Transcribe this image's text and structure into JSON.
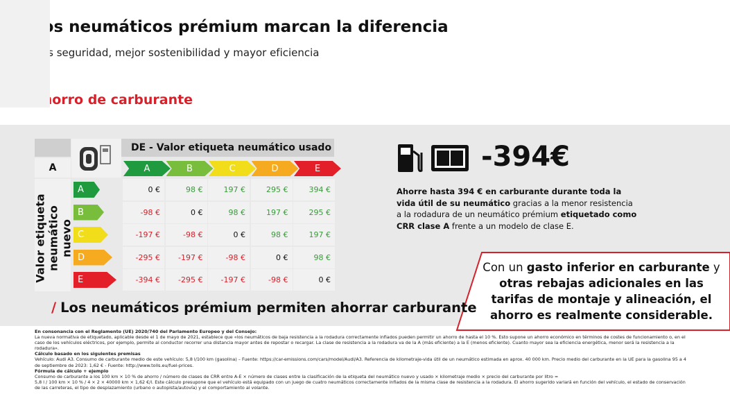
{
  "header": {
    "title": "Los neumáticos prémium marcan la diferencia",
    "subtitle": "Más seguridad, mejor sostenibilidad y mayor eficiencia"
  },
  "section_title": "Ahorro de carburante",
  "table": {
    "title": "DE - Valor etiqueta neumático usado",
    "corner_label": "A",
    "columns": [
      "A",
      "B",
      "C",
      "D",
      "E"
    ],
    "row_axis_label": "Valor etiqueta neumático nuevo",
    "rows": [
      {
        "label": "A",
        "cells": [
          "0 €",
          "98 €",
          "197 €",
          "295 €",
          "394 €"
        ]
      },
      {
        "label": "B",
        "cells": [
          "-98 €",
          "0 €",
          "98 €",
          "197 €",
          "295 €"
        ]
      },
      {
        "label": "C",
        "cells": [
          "-197 €",
          "-98 €",
          "0 €",
          "98 €",
          "197 €"
        ]
      },
      {
        "label": "D",
        "cells": [
          "-295 €",
          "-197 €",
          "-98 €",
          "0 €",
          "98 €"
        ]
      },
      {
        "label": "E",
        "cells": [
          "-394 €",
          "-295 €",
          "-197 €",
          "-98 €",
          "0 €"
        ]
      }
    ]
  },
  "savings": {
    "amount": "-394€",
    "description": [
      {
        "text": "Ahorre hasta 394 € en carburante durante toda la vida útil de su neumático",
        "bold": true
      },
      {
        "text": " gracias a la menor resistencia a la rodadura de un neumático prémium ",
        "bold": false
      },
      {
        "text": "etiquetado como CRR clase A",
        "bold": true
      },
      {
        "text": " frente a un modelo de clase E.",
        "bold": false
      }
    ]
  },
  "callout": [
    {
      "text": "Con un ",
      "bold": false
    },
    {
      "text": "gasto inferior en carburante",
      "bold": true
    },
    {
      "text": " y ",
      "bold": false
    },
    {
      "text": "otras rebajas adicionales en las tarifas de montaje y alineación, el ahorro es realmente considerable.",
      "bold": true
    }
  ],
  "tagline": {
    "slash": "/",
    "text": "Los neumáticos prémium permiten ahorrar carburante"
  },
  "footnotes": [
    {
      "text": "En consonancia con el Reglamento (UE) 2020/740 del Parlamento Europeo y del Consejo:",
      "bold": true
    },
    {
      "text": "La nueva normativa de etiquetado, aplicable desde el 1 de mayo de 2021, establece que «los neumáticos de baja resistencia a la rodadura correctamente inflados pueden permitir un ahorro de hasta el 10 %. Esto supone un ahorro económico en términos de costes de funcionamiento o, en el caso de los vehículos eléctricos, por ejemplo, permite al conductor recorrer una distancia mayor antes de repostar o recargar. La clase de resistencia a la rodadura va de la A (más eficiente) a la E (menos eficiente). Cuanto mayor sea la eficiencia energética, menor será la resistencia a la rodadura».",
      "bold": false
    },
    {
      "text": "Cálculo basado en los siguientes premisas",
      "bold": true
    },
    {
      "text": "Vehículo: Audi A3. Consumo de carburante medio de este vehículo: 5,8 l/100 km (gasolina) – Fuente: https://car-emissions.com/cars/model/Audi/A3. Referencia de kilometraje-vida útil de un neumático estimada en aprox. 40 000 km. Precio medio del carburante en la UE para la gasolina 95 a 4 de septiembre de 2023: 1,62 € - Fuente: http://www.tolls.eu/fuel-prices.",
      "bold": false
    },
    {
      "text": "Fórmula de cálculo + ejemplo",
      "bold": true
    },
    {
      "text": "Consumo de carburante a los 100 km × 10 % de ahorro / número de clases de CRR entre A-E × número de clases entre la clasificación de la etiqueta del neumático nuevo y usado × kilometraje medio × precio del carburante por litro =",
      "bold": false
    },
    {
      "text": "5,8 l / 100 km × 10 % / 4 × 2 × 40000 km × 1,62 €/l. Este cálculo presupone que el vehículo está equipado con un juego de cuatro neumáticos correctamente inflados de la misma clase de resistencia a la rodadura. El ahorro sugerido variará en función del vehículo, el estado de conservación de las carreteras, el tipo de desplazamiento (urbano o autopista/autovía) y el comportamiento al volante.",
      "bold": false
    }
  ]
}
